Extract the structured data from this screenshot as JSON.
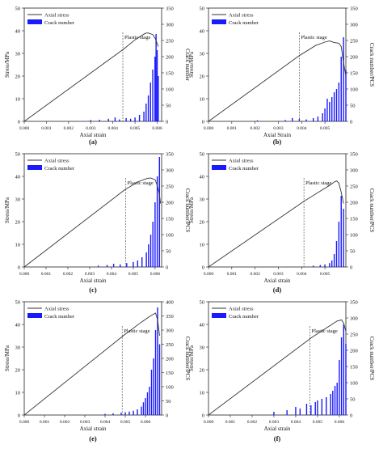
{
  "chart_data": [
    {
      "panel": "(a)",
      "type": "line+bar",
      "xlabel": "Axial strain",
      "ylabel_left": "Stress/MPa",
      "ylabel_right": "Crack number",
      "xlim": [
        0,
        0.0062
      ],
      "x_ticks": [
        "0.000",
        "0.001",
        "0.002",
        "0.003",
        "0.004",
        "0.005",
        "0.006"
      ],
      "ylim_left": [
        0,
        50
      ],
      "ylim_right": [
        0,
        350
      ],
      "y_ticks_left": [
        "0",
        "10",
        "20",
        "30",
        "40",
        "50"
      ],
      "y_ticks_right": [
        "0",
        "50",
        "100",
        "150",
        "200",
        "250",
        "300",
        "350"
      ],
      "legend": {
        "line": "Axial stress",
        "bar": "Crack number",
        "position": "top-left"
      },
      "annotation": {
        "text": "Plastic stage",
        "x": 0.00445
      },
      "stress": {
        "x": [
          0,
          0.0045,
          0.005,
          0.0054,
          0.0055,
          0.0056,
          0.0058,
          0.00592,
          0.00605
        ],
        "y": [
          0,
          32,
          36,
          38.5,
          39,
          39,
          38.3,
          36.5,
          33
        ]
      },
      "cracks": {
        "bins": [
          [
            0.003,
            4
          ],
          [
            0.0034,
            5
          ],
          [
            0.0038,
            8
          ],
          [
            0.0041,
            12
          ],
          [
            0.0043,
            6
          ],
          [
            0.0046,
            10
          ],
          [
            0.0048,
            8
          ],
          [
            0.005,
            12
          ],
          [
            0.0052,
            20
          ],
          [
            0.0054,
            30
          ],
          [
            0.0055,
            55
          ],
          [
            0.0056,
            80
          ],
          [
            0.0057,
            120
          ],
          [
            0.0058,
            160
          ],
          [
            0.0059,
            200
          ],
          [
            0.00595,
            270
          ],
          [
            0.006,
            220
          ],
          [
            0.00605,
            140
          ]
        ]
      }
    },
    {
      "panel": "(b)",
      "type": "line+bar",
      "xlabel": "Axial Strain",
      "ylabel_left": "Stress/MPa",
      "ylabel_right": "Crack number/PCS",
      "xlim": [
        0,
        0.0059
      ],
      "x_ticks": [
        "0.000",
        "0.001",
        "0.002",
        "0.003",
        "0.004",
        "0.005"
      ],
      "ylim_left": [
        0,
        50
      ],
      "ylim_right": [
        0,
        350
      ],
      "y_ticks_left": [
        "0",
        "10",
        "20",
        "30",
        "40",
        "50"
      ],
      "y_ticks_right": [
        "0",
        "50",
        "100",
        "150",
        "200",
        "250",
        "300",
        "350"
      ],
      "legend": {
        "line": "Axial stress",
        "bar": "Crack number",
        "position": "top-left"
      },
      "annotation": {
        "text": "Plastic stage",
        "x": 0.0039
      },
      "stress": {
        "x": [
          0,
          0.0039,
          0.0046,
          0.005,
          0.0052,
          0.0054,
          0.0056,
          0.0057,
          0.0058,
          0.0059
        ],
        "y": [
          0,
          29,
          33.5,
          35,
          35.5,
          34.8,
          34.5,
          33,
          26,
          20
        ]
      },
      "cracks": {
        "bins": [
          [
            0.0021,
            3
          ],
          [
            0.0033,
            4
          ],
          [
            0.0036,
            10
          ],
          [
            0.0039,
            8
          ],
          [
            0.0042,
            6
          ],
          [
            0.0045,
            10
          ],
          [
            0.0047,
            15
          ],
          [
            0.0049,
            25
          ],
          [
            0.005,
            40
          ],
          [
            0.0051,
            70
          ],
          [
            0.0052,
            60
          ],
          [
            0.0053,
            75
          ],
          [
            0.0054,
            90
          ],
          [
            0.0055,
            100
          ],
          [
            0.0056,
            120
          ],
          [
            0.0057,
            200
          ],
          [
            0.0058,
            260
          ],
          [
            0.0059,
            160
          ]
        ]
      }
    },
    {
      "panel": "(c)",
      "type": "line+bar",
      "xlabel": "Axial strain",
      "ylabel_left": "Stress/MPa",
      "ylabel_right": "Crack number/PCS",
      "xlim": [
        0,
        0.0063
      ],
      "x_ticks": [
        "0.000",
        "0.001",
        "0.002",
        "0.003",
        "0.004",
        "0.005",
        "0.006"
      ],
      "ylim_left": [
        0,
        50
      ],
      "ylim_right": [
        0,
        350
      ],
      "y_ticks_left": [
        "0",
        "10",
        "20",
        "30",
        "40",
        "50"
      ],
      "y_ticks_right": [
        "0",
        "50",
        "100",
        "150",
        "200",
        "250",
        "300",
        "350"
      ],
      "legend": {
        "line": "Axial stress",
        "bar": "Crack number",
        "position": "top-left"
      },
      "annotation": {
        "text": "Plastic stage",
        "x": 0.00465
      },
      "stress": {
        "x": [
          0,
          0.0046,
          0.0052,
          0.0056,
          0.0058,
          0.006,
          0.0061,
          0.0062,
          0.00625
        ],
        "y": [
          0,
          34,
          37.5,
          39,
          39.3,
          38.5,
          36,
          32,
          28
        ]
      },
      "cracks": {
        "bins": [
          [
            0.0034,
            4
          ],
          [
            0.0038,
            6
          ],
          [
            0.0041,
            10
          ],
          [
            0.0044,
            8
          ],
          [
            0.0047,
            12
          ],
          [
            0.005,
            15
          ],
          [
            0.0052,
            20
          ],
          [
            0.0054,
            30
          ],
          [
            0.0056,
            45
          ],
          [
            0.0057,
            70
          ],
          [
            0.0058,
            100
          ],
          [
            0.0059,
            140
          ],
          [
            0.006,
            200
          ],
          [
            0.0061,
            280
          ],
          [
            0.0062,
            340
          ]
        ]
      }
    },
    {
      "panel": "(d)",
      "type": "line+bar",
      "xlabel": "Axial strain",
      "ylabel_left": "Stress/MPa",
      "ylabel_right": "Crack number/PCS",
      "xlim": [
        0,
        0.0059
      ],
      "x_ticks": [
        "0.000",
        "0.001",
        "0.002",
        "0.003",
        "0.004",
        "0.005"
      ],
      "ylim_left": [
        0,
        50
      ],
      "ylim_right": [
        0,
        350
      ],
      "y_ticks_left": [
        "0",
        "10",
        "20",
        "30",
        "40",
        "50"
      ],
      "y_ticks_right": [
        "0",
        "50",
        "100",
        "150",
        "200",
        "250",
        "300",
        "350"
      ],
      "legend": {
        "line": "Axial stress",
        "bar": "Crack number",
        "position": "top-left"
      },
      "annotation": {
        "text": "Plastic stage",
        "x": 0.0041
      },
      "stress": {
        "x": [
          0,
          0.0041,
          0.0048,
          0.0052,
          0.0054,
          0.0055,
          0.0056,
          0.0057,
          0.0058
        ],
        "y": [
          0,
          29,
          33.5,
          36,
          37.5,
          38,
          37,
          33,
          28
        ]
      },
      "cracks": {
        "bins": [
          [
            0.0045,
            4
          ],
          [
            0.0048,
            6
          ],
          [
            0.005,
            8
          ],
          [
            0.0052,
            12
          ],
          [
            0.0053,
            20
          ],
          [
            0.0054,
            40
          ],
          [
            0.0055,
            80
          ],
          [
            0.0056,
            140
          ],
          [
            0.0057,
            220
          ],
          [
            0.0058,
            180
          ]
        ]
      }
    },
    {
      "panel": "(e)",
      "type": "line+bar",
      "xlabel": "Axial strain",
      "ylabel_left": "Stress/MPa",
      "ylabel_right": "Crack number/PCS",
      "xlim": [
        0,
        0.0068
      ],
      "x_ticks": [
        "0.000",
        "0.001",
        "0.002",
        "0.003",
        "0.004",
        "0.005",
        "0.006"
      ],
      "ylim_left": [
        0,
        50
      ],
      "ylim_right": [
        0,
        400
      ],
      "y_ticks_left": [
        "0",
        "10",
        "20",
        "30",
        "40",
        "50"
      ],
      "y_ticks_right": [
        "0",
        "50",
        "100",
        "150",
        "200",
        "250",
        "300",
        "350",
        "400"
      ],
      "legend": {
        "line": "Axial stress",
        "bar": "Crack number",
        "position": "top-left"
      },
      "annotation": {
        "text": "Plastic stage",
        "x": 0.00485
      },
      "stress": {
        "x": [
          0,
          0.0049,
          0.0058,
          0.0062,
          0.0064,
          0.0065,
          0.0066,
          0.0067
        ],
        "y": [
          0,
          35,
          41,
          43.5,
          44.5,
          45,
          42,
          35
        ]
      },
      "cracks": {
        "bins": [
          [
            0.004,
            4
          ],
          [
            0.0044,
            6
          ],
          [
            0.0048,
            8
          ],
          [
            0.005,
            10
          ],
          [
            0.0052,
            12
          ],
          [
            0.0054,
            15
          ],
          [
            0.0056,
            20
          ],
          [
            0.0058,
            30
          ],
          [
            0.0059,
            45
          ],
          [
            0.006,
            60
          ],
          [
            0.0061,
            80
          ],
          [
            0.0062,
            100
          ],
          [
            0.0063,
            160
          ],
          [
            0.0064,
            200
          ],
          [
            0.0065,
            300
          ],
          [
            0.0066,
            380
          ],
          [
            0.0067,
            250
          ]
        ]
      }
    },
    {
      "panel": "(f)",
      "type": "line+bar",
      "xlabel": "Axial strain",
      "ylabel_left": "Stress/MPa",
      "ylabel_right": "Crack number/PCS",
      "xlim": [
        0,
        0.0063
      ],
      "x_ticks": [
        "0.000",
        "0.001",
        "0.002",
        "0.003",
        "0.004",
        "0.005",
        "0.006"
      ],
      "ylim_left": [
        0,
        50
      ],
      "ylim_right": [
        0,
        350
      ],
      "y_ticks_left": [
        "0",
        "10",
        "20",
        "30",
        "40",
        "50"
      ],
      "y_ticks_right": [
        "0",
        "50",
        "100",
        "150",
        "200",
        "250",
        "300",
        "350"
      ],
      "legend": {
        "line": "Axial stress",
        "bar": "Crack number",
        "position": "top-left"
      },
      "annotation": {
        "text": "Plastic stage",
        "x": 0.00465
      },
      "stress": {
        "x": [
          0,
          0.0047,
          0.0055,
          0.0059,
          0.0061,
          0.0062,
          0.0063
        ],
        "y": [
          0,
          34,
          39,
          41.5,
          42,
          40.5,
          37
        ]
      },
      "cracks": {
        "bins": [
          [
            0.003,
            10
          ],
          [
            0.0036,
            15
          ],
          [
            0.004,
            25
          ],
          [
            0.0042,
            20
          ],
          [
            0.0045,
            35
          ],
          [
            0.0047,
            30
          ],
          [
            0.0049,
            40
          ],
          [
            0.005,
            45
          ],
          [
            0.0052,
            50
          ],
          [
            0.0054,
            55
          ],
          [
            0.0056,
            65
          ],
          [
            0.0057,
            75
          ],
          [
            0.0058,
            90
          ],
          [
            0.0059,
            100
          ],
          [
            0.006,
            170
          ],
          [
            0.0061,
            240
          ],
          [
            0.0062,
            280
          ],
          [
            0.0063,
            220
          ]
        ]
      }
    }
  ],
  "panel_labels": [
    "(a)",
    "(b)",
    "(c)",
    "(d)",
    "(e)",
    "(f)"
  ],
  "colors": {
    "stress_line": "#333333",
    "crack_bar": "#1a1aff",
    "divider": "#555555"
  }
}
